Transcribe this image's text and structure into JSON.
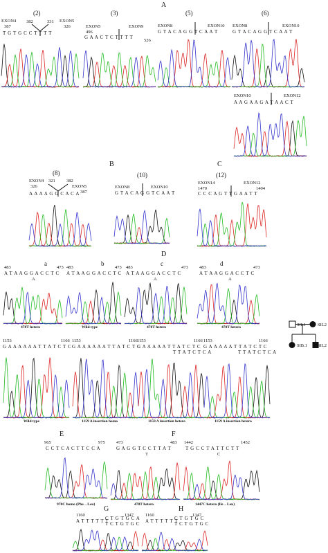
{
  "sections": [
    "A",
    "B",
    "C",
    "D",
    "E",
    "F",
    "G",
    "H"
  ],
  "panels": [
    {
      "title": "(2)",
      "labels": [
        "EXON4",
        "387",
        "382",
        "331",
        "EXON5",
        "326"
      ],
      "sequence": "T G T G C C T T T T"
    },
    {
      "title": "(3)",
      "labels": [
        "EXON5",
        "496",
        "EXON9",
        "526"
      ],
      "sequence": "G A A C T C T T T T"
    },
    {
      "title": "(5)",
      "labels": [
        "EXON8",
        "EXON10"
      ],
      "sequence": "G T A C A G G T C A A T"
    },
    {
      "title": "(6)",
      "labels": [
        "EXON8",
        "EXON10"
      ],
      "sequence": "G T A C A G G T C A A T"
    },
    {
      "labels": [
        "EXON10",
        "EXON12"
      ],
      "sequence": "A A G A A G A T A A C T"
    },
    {
      "title": "(8)",
      "labels": [
        "EXON4",
        "326",
        "321",
        "382",
        "EXON5",
        "387"
      ],
      "sequence": "A A A A G G C A C A"
    },
    {
      "title": "(10)",
      "labels": [
        "EXON8",
        "EXON10"
      ],
      "sequence": "G T A C A G G T C A A T"
    },
    {
      "title": "(12)",
      "labels": [
        "EXON14",
        "1470",
        "EXON12",
        "1404"
      ],
      "sequence": "C C C A G T T G A A T T"
    },
    {
      "title": "a",
      "labels": [
        "483",
        "473"
      ],
      "sequence": "A T A A G G A C C T C",
      "variant": "A",
      "caption": "478T hetero"
    },
    {
      "title": "b",
      "labels": [
        "483",
        "473"
      ],
      "sequence": "A T A A G G A C C T C",
      "caption": "Wild type"
    },
    {
      "title": "c",
      "labels": [
        "483",
        "473"
      ],
      "sequence": "A T A A G G A C C T C",
      "variant": "A",
      "caption": "478T hetero"
    },
    {
      "title": "d",
      "labels": [
        "483",
        "473"
      ],
      "sequence": "A T A A G G A C C T C",
      "variant": "A",
      "caption": "478T hetero"
    },
    {
      "labels": [
        "1153",
        "1166"
      ],
      "sequence": "G A A A A A A T T A T C T C",
      "caption": "Wild type"
    },
    {
      "labels": [
        "1153",
        "1166"
      ],
      "sequence": "G A A A A A A T T A T C T C",
      "caption": "1159 A insertion homo"
    },
    {
      "labels": [
        "1153",
        "1166"
      ],
      "sequence": "G A A A A A T T A T C T C",
      "variant": "T T A T C T C A",
      "caption": "1159 A insertion hetero"
    },
    {
      "labels": [
        "1153",
        "1166"
      ],
      "sequence": "G A A A A A T T A T C T C",
      "variant": "T T A T C T C A",
      "caption": "1159 A insertion hetero"
    },
    {
      "labels": [
        "965",
        "975"
      ],
      "sequence": "C C T C A C T T C C A",
      "caption": "970C homo (Phe→Leu)"
    },
    {
      "labels": [
        "473",
        "483"
      ],
      "sequence": "G A G G T C C T T A T",
      "variant": "T",
      "caption": "478T hetero"
    },
    {
      "labels": [
        "1442",
        "1452"
      ],
      "sequence": "T G C C T A T T C T T",
      "variant": "C",
      "caption": "1447C hetero (Ile→Leu)"
    },
    {
      "labels": [
        "1160",
        "1347"
      ],
      "sequence": "A T T T T T T",
      "variant": "C T G T G C A",
      "second": "T C T G T G C"
    },
    {
      "labels": [
        "1160",
        "1347"
      ],
      "sequence": "A T T T T T T",
      "variant": "C T G T G C",
      "second": "T C T G T G C"
    }
  ],
  "pedigree": [
    "SIL1",
    "SIL2",
    "SIB.1",
    "SIL2"
  ]
}
